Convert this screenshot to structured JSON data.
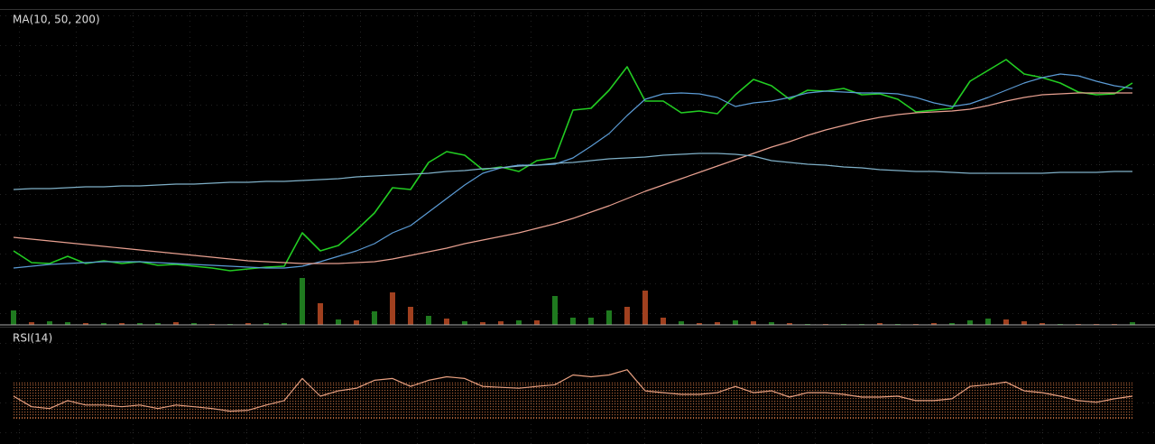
{
  "chart_data": [
    {
      "type": "line",
      "title": "MA(10, 50, 200)",
      "ylim": [
        0,
        345
      ],
      "series": [
        {
          "color": "#22cc22",
          "values": [
            82,
            69,
            68,
            76,
            68,
            71,
            68,
            70,
            66,
            67,
            65,
            63,
            60,
            62,
            64,
            65,
            102,
            82,
            88,
            105,
            124,
            152,
            150,
            180,
            192,
            188,
            172,
            175,
            170,
            182,
            185,
            238,
            240,
            260,
            286,
            248,
            248,
            235,
            237,
            234,
            255,
            272,
            265,
            250,
            260,
            259,
            262,
            255,
            256,
            250,
            236,
            238,
            240,
            270,
            282,
            294,
            278,
            274,
            268,
            258,
            255,
            256,
            268
          ]
        },
        {
          "color": "#5b9bd5",
          "values": [
            63,
            65,
            67,
            68,
            69,
            70,
            70,
            70,
            69,
            68,
            67,
            66,
            65,
            64,
            63,
            63,
            65,
            70,
            76,
            82,
            90,
            102,
            110,
            125,
            140,
            155,
            168,
            174,
            177,
            177,
            178,
            185,
            198,
            212,
            232,
            250,
            256,
            257,
            256,
            252,
            242,
            246,
            248,
            252,
            257,
            259,
            258,
            257,
            257,
            256,
            252,
            246,
            242,
            245,
            252,
            260,
            268,
            274,
            278,
            276,
            270,
            265,
            262
          ]
        },
        {
          "color": "#e8a090",
          "values": [
            97,
            95,
            93,
            91,
            89,
            87,
            85,
            83,
            81,
            79,
            77,
            75,
            73,
            71,
            70,
            69,
            68,
            68,
            68,
            69,
            70,
            73,
            77,
            81,
            85,
            90,
            94,
            98,
            102,
            107,
            112,
            118,
            125,
            132,
            140,
            148,
            155,
            162,
            169,
            176,
            183,
            190,
            197,
            203,
            210,
            216,
            221,
            226,
            230,
            233,
            235,
            236,
            237,
            239,
            243,
            248,
            252,
            255,
            256,
            257,
            257,
            257,
            257
          ]
        },
        {
          "color": "#7fb0c8",
          "values": [
            150,
            151,
            151,
            152,
            153,
            153,
            154,
            154,
            155,
            156,
            156,
            157,
            158,
            158,
            159,
            159,
            160,
            161,
            162,
            164,
            165,
            166,
            167,
            168,
            170,
            171,
            173,
            174,
            176,
            177,
            179,
            180,
            182,
            184,
            185,
            186,
            188,
            189,
            190,
            190,
            189,
            187,
            182,
            180,
            178,
            177,
            175,
            174,
            172,
            171,
            170,
            170,
            169,
            168,
            168,
            168,
            168,
            168,
            169,
            169,
            169,
            170,
            170
          ]
        }
      ]
    },
    {
      "type": "bar",
      "ylim": [
        0,
        100
      ],
      "values": [
        16,
        3,
        4,
        3,
        2,
        2,
        2,
        2,
        2,
        3,
        2,
        1,
        1,
        2,
        2,
        2,
        52,
        24,
        6,
        5,
        15,
        36,
        20,
        10,
        7,
        4,
        3,
        4,
        5,
        5,
        32,
        8,
        8,
        16,
        20,
        38,
        8,
        4,
        2,
        3,
        5,
        4,
        3,
        2,
        1,
        1,
        1,
        1,
        2,
        1,
        1,
        2,
        2,
        5,
        7,
        6,
        4,
        2,
        1,
        1,
        1,
        1,
        3
      ],
      "colors": [
        "#1f7a1f",
        "#a0401f",
        "#1f7a1f",
        "#1f7a1f",
        "#a0401f",
        "#1f7a1f",
        "#a0401f",
        "#1f7a1f",
        "#1f7a1f",
        "#a0401f",
        "#1f7a1f",
        "#a0401f",
        "#1f7a1f",
        "#a0401f",
        "#1f7a1f",
        "#1f7a1f",
        "#1f7a1f",
        "#a0401f",
        "#1f7a1f",
        "#a0401f",
        "#1f7a1f",
        "#a0401f",
        "#a0401f",
        "#1f7a1f",
        "#a0401f",
        "#1f7a1f",
        "#a0401f",
        "#a0401f",
        "#1f7a1f",
        "#a0401f",
        "#1f7a1f",
        "#1f7a1f",
        "#1f7a1f",
        "#1f7a1f",
        "#a0401f",
        "#a0401f",
        "#a0401f",
        "#1f7a1f",
        "#a0401f",
        "#a0401f",
        "#1f7a1f",
        "#a0401f",
        "#1f7a1f",
        "#a0401f",
        "#1f7a1f",
        "#a0401f",
        "#1f7a1f",
        "#1f7a1f",
        "#a0401f",
        "#1f7a1f",
        "#a0401f",
        "#a0401f",
        "#1f7a1f",
        "#1f7a1f",
        "#1f7a1f",
        "#a0401f",
        "#a0401f",
        "#a0401f",
        "#1f7a1f",
        "#a0401f",
        "#a0401f",
        "#a0401f",
        "#1f7a1f"
      ]
    },
    {
      "type": "line",
      "title": "RSI(14)",
      "ylim": [
        10,
        100
      ],
      "band": [
        30,
        70
      ],
      "band_color": "#c87040",
      "series": [
        {
          "color": "#e8a080",
          "values": [
            55,
            43,
            41,
            50,
            45,
            45,
            43,
            45,
            41,
            45,
            43,
            41,
            38,
            39,
            45,
            50,
            75,
            55,
            61,
            64,
            73,
            75,
            66,
            73,
            77,
            75,
            66,
            65,
            64,
            66,
            68,
            79,
            77,
            79,
            85,
            61,
            59,
            57,
            57,
            59,
            66,
            59,
            61,
            54,
            59,
            59,
            57,
            54,
            54,
            55,
            50,
            50,
            52,
            66,
            68,
            71,
            61,
            59,
            55,
            50,
            48,
            52,
            55
          ]
        }
      ]
    }
  ]
}
